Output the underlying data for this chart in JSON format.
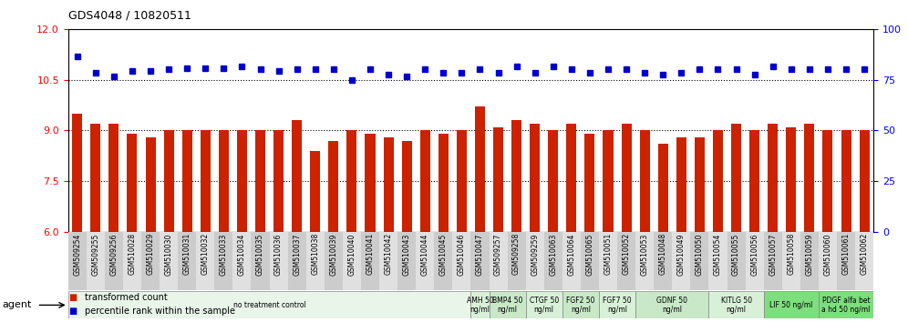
{
  "title": "GDS4048 / 10820511",
  "samples": [
    "GSM509254",
    "GSM509255",
    "GSM509256",
    "GSM510028",
    "GSM510029",
    "GSM510030",
    "GSM510031",
    "GSM510032",
    "GSM510033",
    "GSM510034",
    "GSM510035",
    "GSM510036",
    "GSM510037",
    "GSM510038",
    "GSM510039",
    "GSM510040",
    "GSM510041",
    "GSM510042",
    "GSM510043",
    "GSM510044",
    "GSM510045",
    "GSM510046",
    "GSM510047",
    "GSM509257",
    "GSM509258",
    "GSM509259",
    "GSM510063",
    "GSM510064",
    "GSM510065",
    "GSM510051",
    "GSM510052",
    "GSM510053",
    "GSM510048",
    "GSM510049",
    "GSM510050",
    "GSM510054",
    "GSM510055",
    "GSM510056",
    "GSM510057",
    "GSM510058",
    "GSM510059",
    "GSM510060",
    "GSM510061",
    "GSM510062"
  ],
  "bar_values": [
    9.5,
    9.2,
    9.2,
    8.9,
    8.8,
    9.0,
    9.0,
    9.0,
    9.0,
    9.0,
    9.0,
    9.0,
    9.3,
    8.4,
    8.7,
    9.0,
    8.9,
    8.8,
    8.7,
    9.0,
    8.9,
    9.0,
    9.7,
    9.1,
    9.3,
    9.2,
    9.0,
    9.2,
    8.9,
    9.0,
    9.2,
    9.0,
    8.6,
    8.8,
    8.8,
    9.0,
    9.2,
    9.0,
    9.2,
    9.1,
    9.2,
    9.0,
    9.0,
    9.0
  ],
  "dot_values": [
    11.2,
    10.7,
    10.6,
    10.75,
    10.75,
    10.8,
    10.85,
    10.85,
    10.85,
    10.9,
    10.8,
    10.75,
    10.8,
    10.8,
    10.8,
    10.5,
    10.8,
    10.65,
    10.6,
    10.8,
    10.7,
    10.7,
    10.8,
    10.7,
    10.9,
    10.7,
    10.9,
    10.8,
    10.7,
    10.8,
    10.8,
    10.7,
    10.65,
    10.7,
    10.8,
    10.8,
    10.8,
    10.65,
    10.9,
    10.8,
    10.8,
    10.8,
    10.8,
    10.8
  ],
  "ylim_left": [
    6,
    12
  ],
  "yticks_left": [
    6,
    7.5,
    9,
    10.5,
    12
  ],
  "ylim_right": [
    0,
    100
  ],
  "yticks_right": [
    0,
    25,
    50,
    75,
    100
  ],
  "bar_color": "#cc2200",
  "dot_color": "#0000cc",
  "hline_values": [
    7.5,
    9.0,
    10.5
  ],
  "agent_groups": [
    {
      "label": "no treatment control",
      "start": 0,
      "end": 22,
      "bg": "#e8f5e8"
    },
    {
      "label": "AMH 50\nng/ml",
      "start": 22,
      "end": 23,
      "bg": "#d8f0d8"
    },
    {
      "label": "BMP4 50\nng/ml",
      "start": 23,
      "end": 25,
      "bg": "#c8e8c8"
    },
    {
      "label": "CTGF 50\nng/ml",
      "start": 25,
      "end": 27,
      "bg": "#d8f0d8"
    },
    {
      "label": "FGF2 50\nng/ml",
      "start": 27,
      "end": 29,
      "bg": "#c8e8c8"
    },
    {
      "label": "FGF7 50\nng/ml",
      "start": 29,
      "end": 31,
      "bg": "#d8f0d8"
    },
    {
      "label": "GDNF 50\nng/ml",
      "start": 31,
      "end": 35,
      "bg": "#c8e8c8"
    },
    {
      "label": "KITLG 50\nng/ml",
      "start": 35,
      "end": 38,
      "bg": "#d8f0d8"
    },
    {
      "label": "LIF 50 ng/ml",
      "start": 38,
      "end": 41,
      "bg": "#7dde7d"
    },
    {
      "label": "PDGF alfa bet\na hd 50 ng/ml",
      "start": 41,
      "end": 44,
      "bg": "#7dde7d"
    }
  ]
}
